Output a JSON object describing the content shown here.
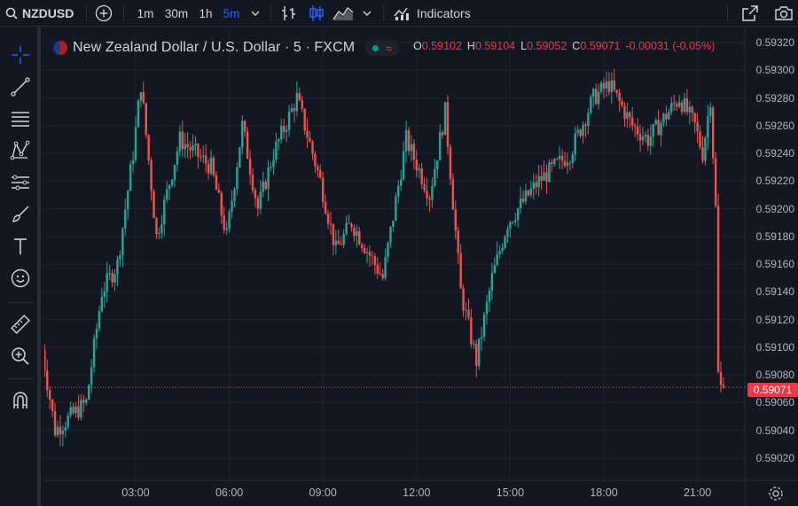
{
  "toolbar": {
    "symbol": "NZDUSD",
    "timeframes": [
      "1m",
      "30m",
      "1h",
      "5m"
    ],
    "active_timeframe": "5m",
    "indicators_label": "Indicators"
  },
  "legend": {
    "title": "New Zealand Dollar / U.S. Dollar · 5 · FXCM",
    "ohlc": {
      "o_label": "O",
      "o": "0.59102",
      "h_label": "H",
      "h": "0.59104",
      "l_label": "L",
      "l": "0.59052",
      "c_label": "C",
      "c": "0.59071",
      "change": "-0.00031 (-0.05%)"
    }
  },
  "price_axis": {
    "labels": [
      "0.59320",
      "0.59300",
      "0.59280",
      "0.59260",
      "0.59240",
      "0.59220",
      "0.59200",
      "0.59180",
      "0.59160",
      "0.59140",
      "0.59120",
      "0.59100",
      "0.59080",
      "0.59060",
      "0.59040",
      "0.59020"
    ],
    "current_price": "0.59071"
  },
  "time_axis": {
    "labels": [
      "03:00",
      "06:00",
      "09:00",
      "12:00",
      "15:00",
      "18:00",
      "21:00"
    ]
  },
  "colors": {
    "background": "#131722",
    "up": "#26a69a",
    "down": "#ef5350",
    "accent": "#2962ff",
    "grid": "#1e222d"
  },
  "chart_data": {
    "type": "candlestick",
    "interval": "5m",
    "ylim": [
      0.5901,
      0.5933
    ],
    "current_price": 0.59071,
    "key_points": [
      {
        "time": "00:00",
        "price": 0.5911
      },
      {
        "time": "00:30",
        "price": 0.5904
      },
      {
        "time": "01:30",
        "price": 0.5906
      },
      {
        "time": "02:00",
        "price": 0.5914
      },
      {
        "time": "02:30",
        "price": 0.5916
      },
      {
        "time": "03:00",
        "price": 0.5924
      },
      {
        "time": "03:15",
        "price": 0.5929
      },
      {
        "time": "03:45",
        "price": 0.5918
      },
      {
        "time": "04:30",
        "price": 0.5925
      },
      {
        "time": "05:30",
        "price": 0.5923
      },
      {
        "time": "06:00",
        "price": 0.5918
      },
      {
        "time": "06:30",
        "price": 0.5926
      },
      {
        "time": "07:00",
        "price": 0.592
      },
      {
        "time": "07:30",
        "price": 0.5924
      },
      {
        "time": "08:15",
        "price": 0.5928
      },
      {
        "time": "09:00",
        "price": 0.5922
      },
      {
        "time": "09:30",
        "price": 0.5917
      },
      {
        "time": "10:00",
        "price": 0.5919
      },
      {
        "time": "11:00",
        "price": 0.5915
      },
      {
        "time": "11:45",
        "price": 0.5925
      },
      {
        "time": "12:30",
        "price": 0.5921
      },
      {
        "time": "13:00",
        "price": 0.5927
      },
      {
        "time": "13:30",
        "price": 0.5914
      },
      {
        "time": "14:00",
        "price": 0.5909
      },
      {
        "time": "14:30",
        "price": 0.5915
      },
      {
        "time": "15:00",
        "price": 0.5919
      },
      {
        "time": "16:00",
        "price": 0.5922
      },
      {
        "time": "17:00",
        "price": 0.5924
      },
      {
        "time": "17:45",
        "price": 0.5928
      },
      {
        "time": "18:15",
        "price": 0.5929
      },
      {
        "time": "19:00",
        "price": 0.5926
      },
      {
        "time": "19:30",
        "price": 0.5925
      },
      {
        "time": "20:30",
        "price": 0.5928
      },
      {
        "time": "21:00",
        "price": 0.5926
      },
      {
        "time": "21:15",
        "price": 0.5924
      },
      {
        "time": "21:30",
        "price": 0.5928
      },
      {
        "time": "21:40",
        "price": 0.592
      },
      {
        "time": "21:45",
        "price": 0.5908
      },
      {
        "time": "21:50",
        "price": 0.59071
      }
    ]
  }
}
